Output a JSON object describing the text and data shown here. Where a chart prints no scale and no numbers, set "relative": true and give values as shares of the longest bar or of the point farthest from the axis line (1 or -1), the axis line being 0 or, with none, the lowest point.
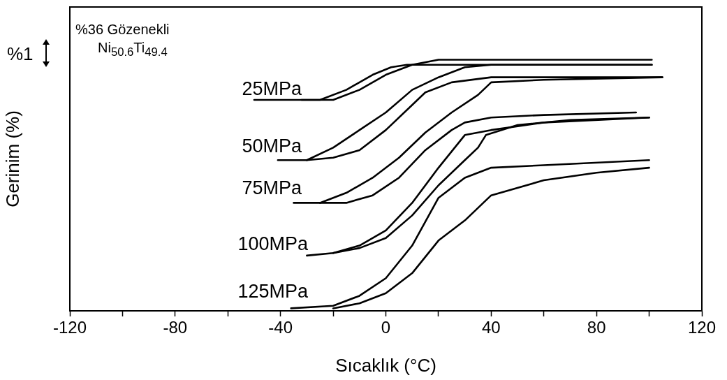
{
  "chart_data": {
    "type": "line",
    "xlabel": "Sıcaklık (°C)",
    "ylabel": "Gerinim (%)",
    "relative": true,
    "xlim": [
      -120,
      120
    ],
    "xticks": [
      -120,
      {
        "value": -100,
        "label": null
      },
      -80,
      {
        "value": -60,
        "label": null
      },
      -40,
      {
        "value": -20,
        "label": null
      },
      0,
      {
        "value": 20,
        "label": null
      },
      40,
      {
        "value": 60,
        "label": null
      },
      80,
      {
        "value": 100,
        "label": null
      },
      120
    ],
    "grid": false,
    "legend": false,
    "marker": "none",
    "line_style": "solid",
    "annotations": [
      "%36 Gözenekli",
      "Ni$_{50.6}$Ti$_{49.4}$",
      "%1",
      "25MPa",
      "50MPa",
      "75MPa",
      "100MPa",
      "125MPa"
    ],
    "series": [
      {
        "color": "#000000",
        "x": [
          -50,
          -32,
          -25,
          -15,
          -5,
          2,
          8,
          40,
          101
        ],
        "values": [
          0.84,
          0.84,
          0.84,
          0.88,
          0.94,
          0.97,
          0.98,
          0.98,
          0.98
        ]
      },
      {
        "color": "#000000",
        "x": [
          -32,
          -20,
          -10,
          0,
          10,
          20,
          30,
          101
        ],
        "values": [
          0.84,
          0.84,
          0.88,
          0.94,
          0.98,
          1.0,
          1.0,
          1.0
        ]
      },
      {
        "color": "#000000",
        "x": [
          -41,
          -30,
          -20,
          -10,
          0,
          10,
          20,
          30,
          40,
          101
        ],
        "values": [
          0.6,
          0.6,
          0.65,
          0.72,
          0.79,
          0.88,
          0.93,
          0.97,
          0.98,
          0.98
        ]
      },
      {
        "color": "#000000",
        "x": [
          -30,
          -20,
          -10,
          0,
          10,
          15,
          25,
          40,
          60,
          105
        ],
        "values": [
          0.6,
          0.61,
          0.64,
          0.72,
          0.82,
          0.87,
          0.91,
          0.93,
          0.93,
          0.93
        ]
      },
      {
        "color": "#000000",
        "x": [
          -35,
          -25,
          -15,
          -5,
          5,
          15,
          25,
          35,
          40,
          60,
          105
        ],
        "values": [
          0.43,
          0.43,
          0.47,
          0.53,
          0.61,
          0.71,
          0.79,
          0.86,
          0.91,
          0.92,
          0.93
        ]
      },
      {
        "color": "#000000",
        "x": [
          -25,
          -15,
          -5,
          5,
          15,
          25,
          30,
          40,
          60,
          95
        ],
        "values": [
          0.43,
          0.43,
          0.46,
          0.53,
          0.64,
          0.72,
          0.75,
          0.77,
          0.78,
          0.79
        ]
      },
      {
        "color": "#000000",
        "x": [
          -30,
          -20,
          -10,
          0,
          10,
          20,
          30,
          40,
          60,
          100
        ],
        "values": [
          0.22,
          0.23,
          0.26,
          0.32,
          0.43,
          0.57,
          0.7,
          0.72,
          0.75,
          0.77
        ]
      },
      {
        "color": "#000000",
        "x": [
          -20,
          -10,
          0,
          10,
          20,
          30,
          35,
          38,
          50,
          70,
          100
        ],
        "values": [
          0.23,
          0.25,
          0.29,
          0.38,
          0.5,
          0.6,
          0.65,
          0.7,
          0.74,
          0.76,
          0.77
        ]
      },
      {
        "color": "#000000",
        "x": [
          -36,
          -20,
          -10,
          0,
          10,
          20,
          30,
          40,
          60,
          100
        ],
        "values": [
          0.01,
          0.02,
          0.06,
          0.13,
          0.26,
          0.45,
          0.53,
          0.57,
          0.58,
          0.6
        ]
      },
      {
        "color": "#000000",
        "x": [
          -20,
          -10,
          0,
          10,
          20,
          30,
          35,
          37,
          40,
          60,
          80,
          100
        ],
        "values": [
          0.01,
          0.03,
          0.07,
          0.15,
          0.28,
          0.36,
          0.41,
          0.43,
          0.46,
          0.52,
          0.55,
          0.57
        ]
      }
    ]
  }
}
